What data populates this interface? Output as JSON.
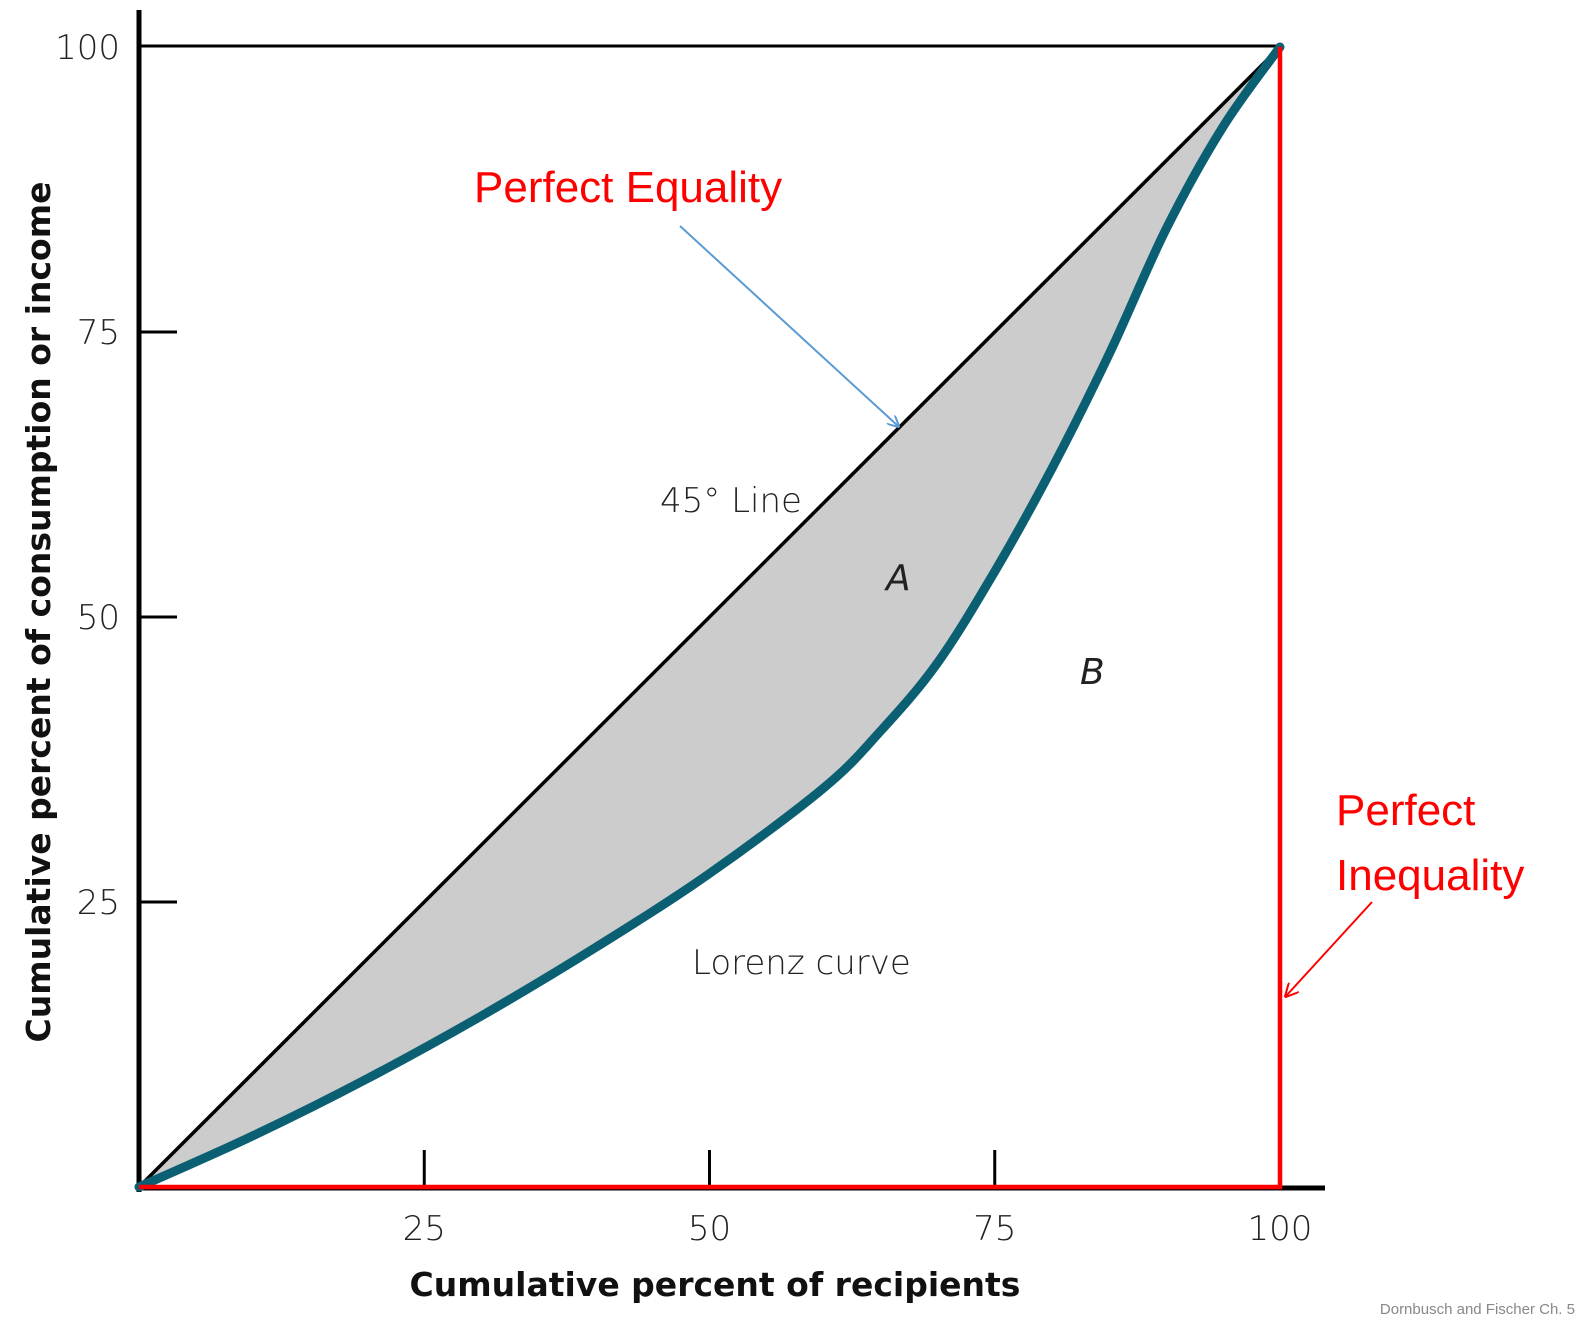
{
  "chart_data": {
    "type": "line",
    "xlabel": "Cumulative percent of recipients",
    "ylabel": "Cumulative percent of consumption or income",
    "xlim": [
      0,
      100
    ],
    "ylim": [
      0,
      100
    ],
    "x_ticks": [
      "25",
      "50",
      "75",
      "100"
    ],
    "y_ticks": [
      "25",
      "50",
      "75",
      "100"
    ],
    "grid": false,
    "series": [
      {
        "name": "45° Line",
        "color": "#000000",
        "points": [
          [
            0,
            0
          ],
          [
            100,
            100
          ]
        ]
      },
      {
        "name": "Lorenz curve",
        "color": "#0b5f73",
        "points": [
          [
            0,
            0
          ],
          [
            10,
            4.5
          ],
          [
            20,
            9.5
          ],
          [
            30,
            15
          ],
          [
            40,
            21
          ],
          [
            50,
            27.5
          ],
          [
            60,
            35
          ],
          [
            65,
            40
          ],
          [
            70,
            46
          ],
          [
            75,
            54
          ],
          [
            80,
            63
          ],
          [
            85,
            73
          ],
          [
            90,
            84
          ],
          [
            95,
            93
          ],
          [
            100,
            100
          ]
        ]
      },
      {
        "name": "Perfect Inequality",
        "color": "#ff0000",
        "points": [
          [
            0,
            0
          ],
          [
            100,
            0
          ],
          [
            100,
            100
          ]
        ]
      }
    ],
    "shaded_region": {
      "between": [
        "45° Line",
        "Lorenz curve"
      ],
      "color": "#cccccc"
    },
    "annotations": {
      "perfect_equality": "Perfect Equality",
      "perfect_inequality_line1": "Perfect",
      "perfect_inequality_line2": "Inequality",
      "forty_five_line": "45° Line",
      "lorenz": "Lorenz curve",
      "region_a": "A",
      "region_b": "B"
    },
    "arrows": {
      "equality_arrow_color": "#5b9bd5",
      "inequality_arrow_color": "#ff0000"
    },
    "footer": "Dornbusch and Fischer Ch. 5"
  }
}
